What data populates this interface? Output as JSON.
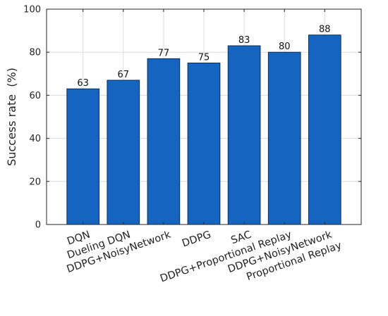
{
  "chart_data": {
    "type": "bar",
    "categories": [
      "DQN",
      "Dueling DQN",
      "DDPG+NoisyNetwork",
      "DDPG",
      "SAC",
      "DDPG+Proportional Replay",
      "DDPG+NoisyNetwork Proportional Replay"
    ],
    "category_lines": [
      [
        "DQN"
      ],
      [
        "Dueling DQN"
      ],
      [
        "DDPG+NoisyNetwork"
      ],
      [
        "DDPG"
      ],
      [
        "SAC"
      ],
      [
        "DDPG+Proportional Replay"
      ],
      [
        "DDPG+NoisyNetwork",
        "Proportional Replay"
      ]
    ],
    "values": [
      63,
      67,
      77,
      75,
      83,
      80,
      88
    ],
    "value_labels": [
      "63",
      "67",
      "77",
      "75",
      "83",
      "80",
      "88"
    ],
    "title": "",
    "xlabel": "",
    "ylabel": "Success rate  (%)",
    "ylim": [
      0,
      100
    ],
    "yticks": [
      0,
      20,
      40,
      60,
      80,
      100
    ],
    "ytick_labels": [
      "0",
      "20",
      "40",
      "60",
      "80",
      "100"
    ],
    "grid": true,
    "bar_color": "#1565C0",
    "bar_edge_color": "#0A2D5A"
  }
}
